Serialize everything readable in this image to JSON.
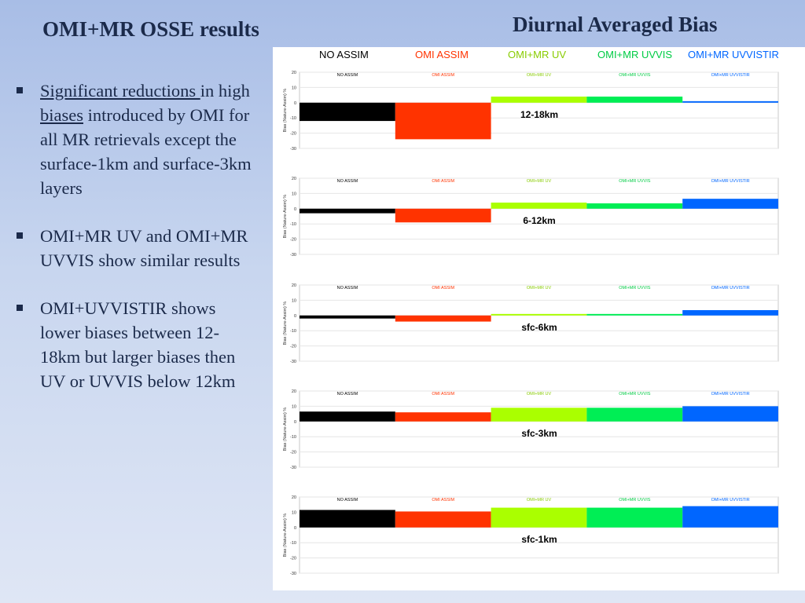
{
  "slide": {
    "title": "OMI+MR OSSE results",
    "chart_title": "Diurnal Averaged Bias",
    "bullets": [
      {
        "lead": "",
        "u1": "Significant reductions ",
        "mid1": "in high ",
        "u2": "biases",
        "tail": " introduced by OMI for all MR retrievals except the surface-1km and surface-3km layers"
      },
      {
        "lead": "OMI+MR UV and OMI+MR UVVIS show similar results",
        "u1": "",
        "mid1": "",
        "u2": "",
        "tail": ""
      },
      {
        "lead": "OMI+UVVISTIR shows lower biases between 12-18km but larger biases then UV or UVVIS below 12km",
        "u1": "",
        "mid1": "",
        "u2": "",
        "tail": ""
      }
    ]
  },
  "legend": [
    {
      "label": "NO ASSIM",
      "color": "#000000"
    },
    {
      "label": "OMI ASSIM",
      "color": "#ff3300"
    },
    {
      "label": "OMI+MR UV",
      "color": "#aaff00"
    },
    {
      "label": "OMI+MR UVVIS",
      "color": "#00ee55"
    },
    {
      "label": "OMI+MR UVVISTIR",
      "color": "#0066ff"
    }
  ],
  "chart_data": [
    {
      "type": "bar",
      "panel_label": "12-18km",
      "ylabel": "Bias (Nature-Assim) %",
      "ylim": [
        -30,
        20
      ],
      "yticks": [
        20,
        10,
        0,
        -10,
        -20,
        -30
      ],
      "categories": [
        "NO ASSIM",
        "OMI ASSIM",
        "OMI+MR UV",
        "OMI+MR UVVIS",
        "OMI+MR UVVISTIR"
      ],
      "values": [
        -12,
        -24,
        4,
        4,
        1
      ]
    },
    {
      "type": "bar",
      "panel_label": "6-12km",
      "ylabel": "Bias (Nature-Assim) %",
      "ylim": [
        -30,
        20
      ],
      "yticks": [
        20,
        10,
        0,
        -10,
        -20,
        -30
      ],
      "categories": [
        "NO ASSIM",
        "OMI ASSIM",
        "OMI+MR UV",
        "OMI+MR UVVIS",
        "OMI+MR UVVISTIR"
      ],
      "values": [
        -3,
        -9,
        4,
        3.5,
        6.5
      ]
    },
    {
      "type": "bar",
      "panel_label": "sfc-6km",
      "ylabel": "Bias (Nature-Assim) %",
      "ylim": [
        -30,
        20
      ],
      "yticks": [
        20,
        10,
        0,
        -10,
        -20,
        -30
      ],
      "categories": [
        "NO ASSIM",
        "OMI ASSIM",
        "OMI+MR UV",
        "OMI+MR UVVIS",
        "OMI+MR UVVISTIR"
      ],
      "values": [
        -2,
        -4,
        1,
        1,
        3.5
      ]
    },
    {
      "type": "bar",
      "panel_label": "sfc-3km",
      "ylabel": "Bias (Nature-Assim) %",
      "ylim": [
        -30,
        20
      ],
      "yticks": [
        20,
        10,
        0,
        -10,
        -20,
        -30
      ],
      "categories": [
        "NO ASSIM",
        "OMI ASSIM",
        "OMI+MR UV",
        "OMI+MR UVVIS",
        "OMI+MR UVVISTIR"
      ],
      "values": [
        6.5,
        6,
        9,
        9,
        10
      ]
    },
    {
      "type": "bar",
      "panel_label": "sfc-1km",
      "ylabel": "Bias (Nature-Assim) %",
      "ylim": [
        -30,
        20
      ],
      "yticks": [
        20,
        10,
        0,
        -10,
        -20,
        -30
      ],
      "categories": [
        "NO ASSIM",
        "OMI ASSIM",
        "OMI+MR UV",
        "OMI+MR UVVIS",
        "OMI+MR UVVISTIR"
      ],
      "values": [
        11.5,
        10.5,
        13,
        13,
        14
      ]
    }
  ]
}
